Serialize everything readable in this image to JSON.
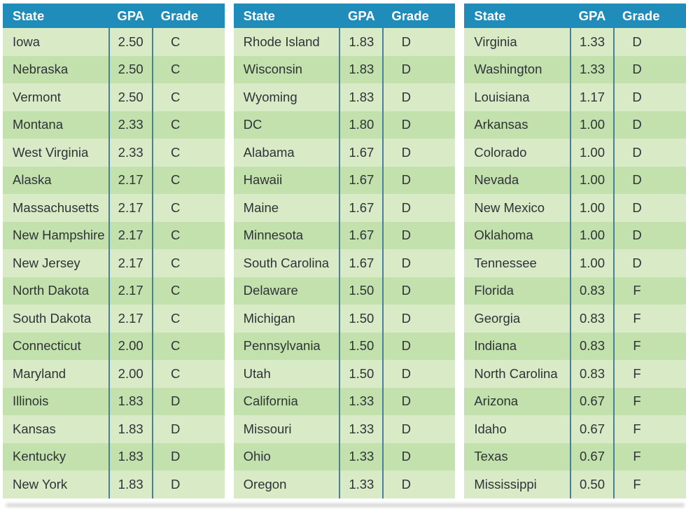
{
  "colors": {
    "header_bg": "#1F8CBA",
    "header_text": "#FFFFFF",
    "row_light": "#D8EBC6",
    "row_dark": "#C3E1AD",
    "divider": "#46809B",
    "body_text": "#2F3337",
    "shadow": "#C6C6C6",
    "page_bg": "#FFFFFF"
  },
  "chart_data": {
    "type": "table",
    "title": "",
    "columns": [
      "State",
      "GPA",
      "Grade"
    ],
    "tables": [
      {
        "rows": [
          [
            "Iowa",
            "2.50",
            "C"
          ],
          [
            "Nebraska",
            "2.50",
            "C"
          ],
          [
            "Vermont",
            "2.50",
            "C"
          ],
          [
            "Montana",
            "2.33",
            "C"
          ],
          [
            "West Virginia",
            "2.33",
            "C"
          ],
          [
            "Alaska",
            "2.17",
            "C"
          ],
          [
            "Massachusetts",
            "2.17",
            "C"
          ],
          [
            "New Hampshire",
            "2.17",
            "C"
          ],
          [
            "New Jersey",
            "2.17",
            "C"
          ],
          [
            "North Dakota",
            "2.17",
            "C"
          ],
          [
            "South Dakota",
            "2.17",
            "C"
          ],
          [
            "Connecticut",
            "2.00",
            "C"
          ],
          [
            "Maryland",
            "2.00",
            "C"
          ],
          [
            "Illinois",
            "1.83",
            "D"
          ],
          [
            "Kansas",
            "1.83",
            "D"
          ],
          [
            "Kentucky",
            "1.83",
            "D"
          ],
          [
            "New York",
            "1.83",
            "D"
          ]
        ]
      },
      {
        "rows": [
          [
            "Rhode Island",
            "1.83",
            "D"
          ],
          [
            "Wisconsin",
            "1.83",
            "D"
          ],
          [
            "Wyoming",
            "1.83",
            "D"
          ],
          [
            "DC",
            "1.80",
            "D"
          ],
          [
            "Alabama",
            "1.67",
            "D"
          ],
          [
            "Hawaii",
            "1.67",
            "D"
          ],
          [
            "Maine",
            "1.67",
            "D"
          ],
          [
            "Minnesota",
            "1.67",
            "D"
          ],
          [
            "South Carolina",
            "1.67",
            "D"
          ],
          [
            "Delaware",
            "1.50",
            "D"
          ],
          [
            "Michigan",
            "1.50",
            "D"
          ],
          [
            "Pennsylvania",
            "1.50",
            "D"
          ],
          [
            "Utah",
            "1.50",
            "D"
          ],
          [
            "California",
            "1.33",
            "D"
          ],
          [
            "Missouri",
            "1.33",
            "D"
          ],
          [
            "Ohio",
            "1.33",
            "D"
          ],
          [
            "Oregon",
            "1.33",
            "D"
          ]
        ]
      },
      {
        "rows": [
          [
            "Virginia",
            "1.33",
            "D"
          ],
          [
            "Washington",
            "1.33",
            "D"
          ],
          [
            "Louisiana",
            "1.17",
            "D"
          ],
          [
            "Arkansas",
            "1.00",
            "D"
          ],
          [
            "Colorado",
            "1.00",
            "D"
          ],
          [
            "Nevada",
            "1.00",
            "D"
          ],
          [
            "New Mexico",
            "1.00",
            "D"
          ],
          [
            "Oklahoma",
            "1.00",
            "D"
          ],
          [
            "Tennessee",
            "1.00",
            "D"
          ],
          [
            "Florida",
            "0.83",
            "F"
          ],
          [
            "Georgia",
            "0.83",
            "F"
          ],
          [
            "Indiana",
            "0.83",
            "F"
          ],
          [
            "North Carolina",
            "0.83",
            "F"
          ],
          [
            "Arizona",
            "0.67",
            "F"
          ],
          [
            "Idaho",
            "0.67",
            "F"
          ],
          [
            "Texas",
            "0.67",
            "F"
          ],
          [
            "Mississippi",
            "0.50",
            "F"
          ]
        ]
      }
    ]
  }
}
